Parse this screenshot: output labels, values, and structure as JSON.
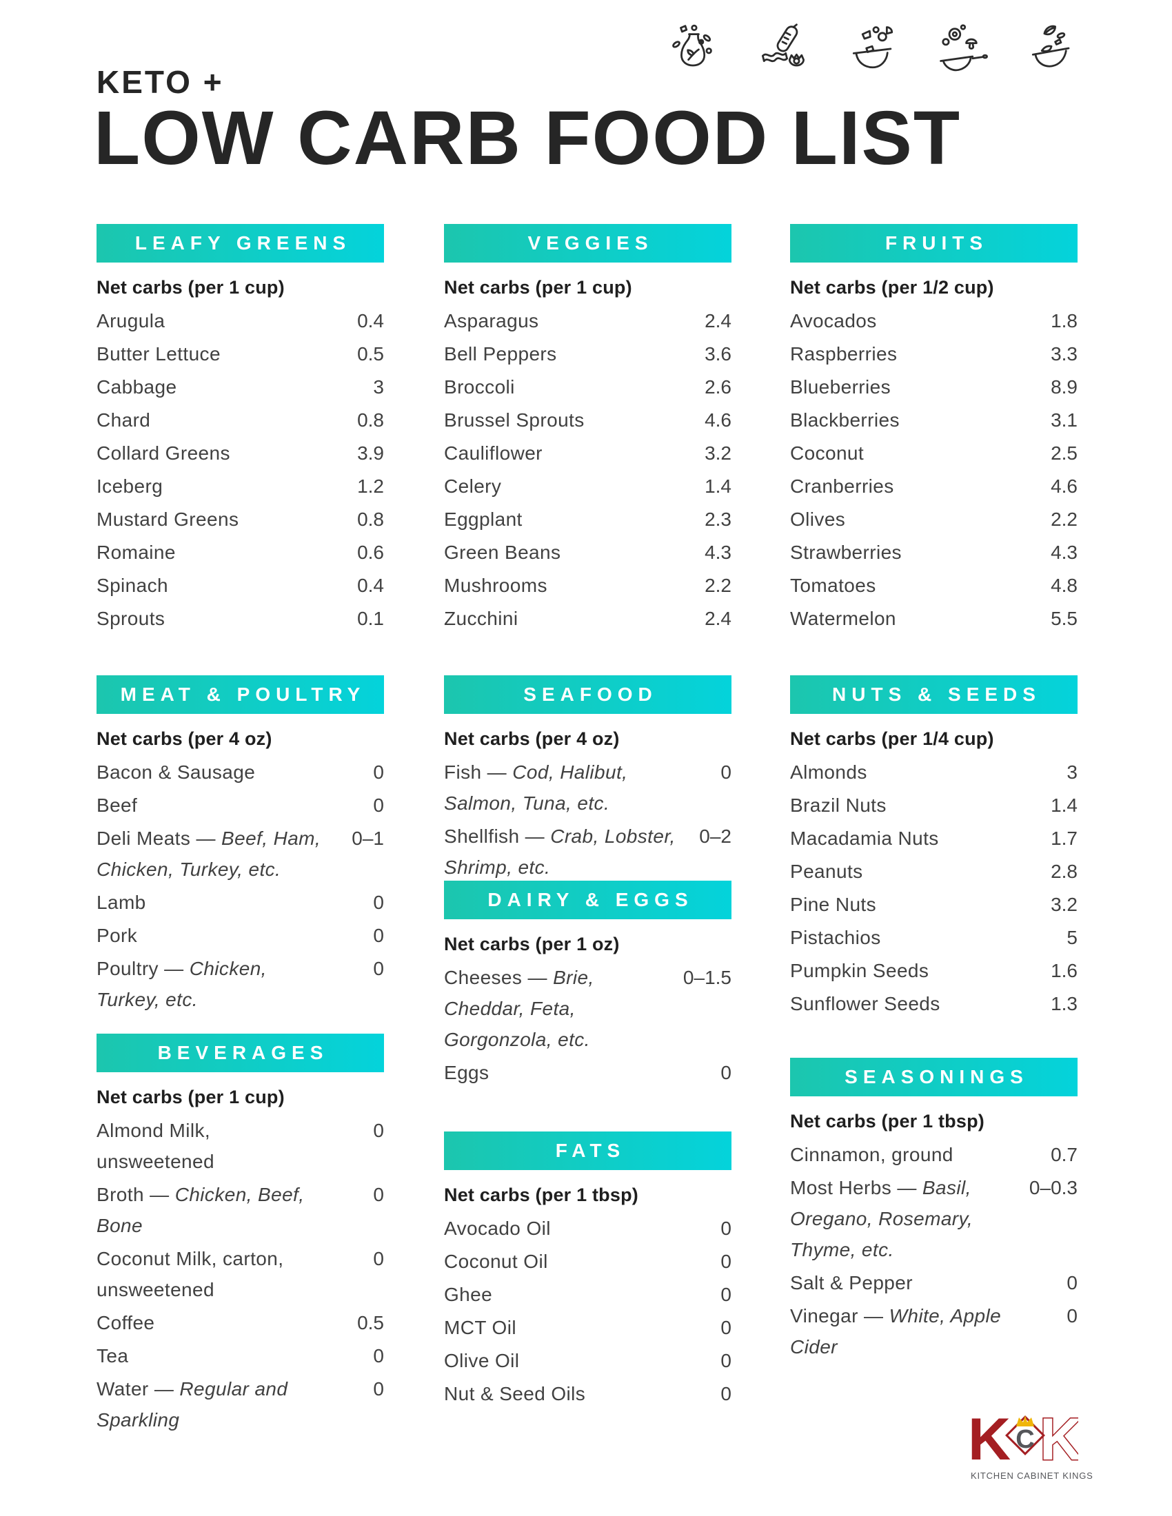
{
  "header": {
    "kicker": "KETO +",
    "title": "LOW CARB FOOD LIST",
    "icons": [
      "milk-jug-icon",
      "sausage-bacon-egg-icon",
      "fruit-bowl-icon",
      "veggie-pan-icon",
      "herb-bowl-icon"
    ]
  },
  "colors": {
    "accent_gradient_start": "#1CC6AE",
    "accent_gradient_end": "#04D3DB",
    "heading_text": "#262626",
    "item_text": "#414141",
    "bar_text": "#FFFFFF",
    "logo_red": "#A41E22",
    "logo_gray": "#55565A",
    "logo_gold": "#F0B50A"
  },
  "sections": [
    {
      "id": "leafy-greens",
      "title": "LEAFY GREENS",
      "serving": "Net carbs (per 1 cup)",
      "items": [
        {
          "name": "Arugula",
          "value": "0.4"
        },
        {
          "name": "Butter Lettuce",
          "value": "0.5"
        },
        {
          "name": "Cabbage",
          "value": "3"
        },
        {
          "name": "Chard",
          "value": "0.8"
        },
        {
          "name": "Collard Greens",
          "value": "3.9"
        },
        {
          "name": "Iceberg",
          "value": "1.2"
        },
        {
          "name": "Mustard Greens",
          "value": "0.8"
        },
        {
          "name": "Romaine",
          "value": "0.6"
        },
        {
          "name": "Spinach",
          "value": "0.4"
        },
        {
          "name": "Sprouts",
          "value": "0.1"
        }
      ]
    },
    {
      "id": "veggies",
      "title": "VEGGIES",
      "serving": "Net carbs (per 1 cup)",
      "items": [
        {
          "name": "Asparagus",
          "value": "2.4"
        },
        {
          "name": "Bell Peppers",
          "value": "3.6"
        },
        {
          "name": "Broccoli",
          "value": "2.6"
        },
        {
          "name": "Brussel Sprouts",
          "value": "4.6"
        },
        {
          "name": "Cauliflower",
          "value": "3.2"
        },
        {
          "name": "Celery",
          "value": "1.4"
        },
        {
          "name": "Eggplant",
          "value": "2.3"
        },
        {
          "name": "Green Beans",
          "value": "4.3"
        },
        {
          "name": "Mushrooms",
          "value": "2.2"
        },
        {
          "name": "Zucchini",
          "value": "2.4"
        }
      ]
    },
    {
      "id": "fruits",
      "title": "FRUITS",
      "serving": "Net carbs (per 1/2 cup)",
      "items": [
        {
          "name": "Avocados",
          "value": "1.8"
        },
        {
          "name": "Raspberries",
          "value": "3.3"
        },
        {
          "name": "Blueberries",
          "value": "8.9"
        },
        {
          "name": "Blackberries",
          "value": "3.1"
        },
        {
          "name": "Coconut",
          "value": "2.5"
        },
        {
          "name": "Cranberries",
          "value": "4.6"
        },
        {
          "name": "Olives",
          "value": "2.2"
        },
        {
          "name": "Strawberries",
          "value": "4.3"
        },
        {
          "name": "Tomatoes",
          "value": "4.8"
        },
        {
          "name": "Watermelon",
          "value": "5.5"
        }
      ]
    },
    {
      "id": "meat-poultry",
      "title": "MEAT & POULTRY",
      "serving": "Net carbs (per 4 oz)",
      "items": [
        {
          "name": "Bacon & Sausage",
          "value": "0"
        },
        {
          "name": "Beef",
          "value": "0"
        },
        {
          "name": "Deli Meats —",
          "detail": "Beef, Ham, Chicken, Turkey, etc.",
          "value": "0–1"
        },
        {
          "name": "Lamb",
          "value": "0"
        },
        {
          "name": "Pork",
          "value": "0"
        },
        {
          "name": "Poultry —",
          "detail": "Chicken, Turkey, etc.",
          "value": "0"
        }
      ]
    },
    {
      "id": "seafood",
      "title": "SEAFOOD",
      "serving": "Net carbs (per 4 oz)",
      "items": [
        {
          "name": "Fish —",
          "detail": "Cod, Halibut, Salmon, Tuna, etc.",
          "value": "0"
        },
        {
          "name": "Shellfish —",
          "detail": "Crab, Lobster, Shrimp, etc.",
          "value": "0–2"
        }
      ]
    },
    {
      "id": "nuts-seeds",
      "title": "NUTS & SEEDS",
      "serving": "Net carbs (per 1/4 cup)",
      "items": [
        {
          "name": "Almonds",
          "value": "3"
        },
        {
          "name": "Brazil Nuts",
          "value": "1.4"
        },
        {
          "name": "Macadamia Nuts",
          "value": "1.7"
        },
        {
          "name": "Peanuts",
          "value": "2.8"
        },
        {
          "name": "Pine Nuts",
          "value": "3.2"
        },
        {
          "name": "Pistachios",
          "value": "5"
        },
        {
          "name": "Pumpkin Seeds",
          "value": "1.6"
        },
        {
          "name": "Sunflower Seeds",
          "value": "1.3"
        }
      ]
    },
    {
      "id": "dairy-eggs",
      "title": "DAIRY & EGGS",
      "serving": "Net carbs (per 1 oz)",
      "items": [
        {
          "name": "Cheeses —",
          "detail": "Brie, Cheddar, Feta, Gorgonzola, etc.",
          "value": "0–1.5"
        },
        {
          "name": "Eggs",
          "value": "0"
        }
      ]
    },
    {
      "id": "beverages",
      "title": "BEVERAGES",
      "serving": "Net carbs (per 1 cup)",
      "items": [
        {
          "name": "Almond Milk, unsweetened",
          "value": "0"
        },
        {
          "name": "Broth —",
          "detail": "Chicken, Beef, Bone",
          "value": "0"
        },
        {
          "name": "Coconut Milk, carton, unsweetened",
          "value": "0"
        },
        {
          "name": "Coffee",
          "value": "0.5"
        },
        {
          "name": "Tea",
          "value": "0"
        },
        {
          "name": "Water —",
          "detail": "Regular and Sparkling",
          "value": "0"
        }
      ]
    },
    {
      "id": "fats",
      "title": "FATS",
      "serving": "Net carbs (per 1 tbsp)",
      "items": [
        {
          "name": "Avocado Oil",
          "value": "0"
        },
        {
          "name": "Coconut Oil",
          "value": "0"
        },
        {
          "name": "Ghee",
          "value": "0"
        },
        {
          "name": "MCT Oil",
          "value": "0"
        },
        {
          "name": "Olive Oil",
          "value": "0"
        },
        {
          "name": "Nut & Seed Oils",
          "value": "0"
        }
      ]
    },
    {
      "id": "seasonings",
      "title": "SEASONINGS",
      "serving": "Net carbs (per 1 tbsp)",
      "items": [
        {
          "name": "Cinnamon, ground",
          "value": "0.7"
        },
        {
          "name": "Most Herbs —",
          "detail": "Basil, Oregano, Rosemary, Thyme, etc.",
          "value": "0–0.3"
        },
        {
          "name": "Salt & Pepper",
          "value": "0"
        },
        {
          "name": "Vinegar —",
          "detail": "White, Apple Cider",
          "value": "0"
        }
      ]
    }
  ],
  "logo": {
    "k1": "K",
    "c": "C",
    "k2": "K",
    "caption": "KITCHEN CABINET KINGS"
  }
}
